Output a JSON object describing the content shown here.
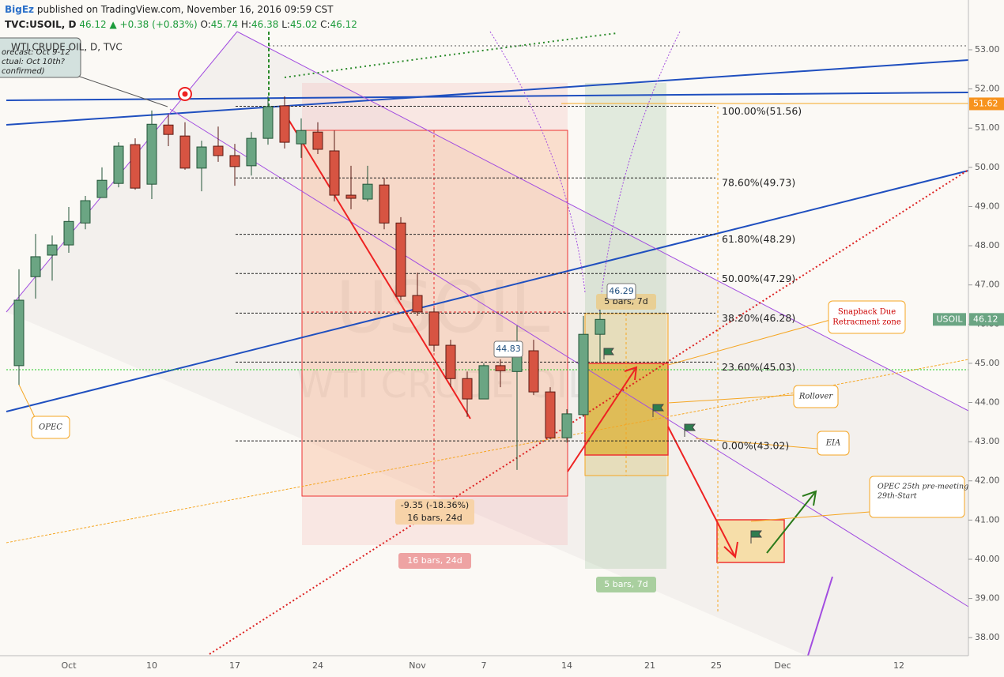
{
  "header": {
    "author": "BigEz",
    "published": "published on TradingView.com, November 16, 2016 09:59 CST",
    "symbol": "TVC:USOIL, D",
    "last": "46.12",
    "change": "▲ +0.38 (+0.83%)",
    "ohlc": [
      {
        "key": "O:",
        "value": "45.74"
      },
      {
        "key": "H:",
        "value": "46.38"
      },
      {
        "key": "L:",
        "value": "45.02"
      },
      {
        "key": "C:",
        "value": "46.12"
      }
    ]
  },
  "chart_data": {
    "type": "candlestick",
    "title": "WTI CRUDE OIL, D, TVC",
    "watermark": [
      "USOIL",
      "WTI CRUDE OIL"
    ],
    "categories": [
      null,
      null,
      null,
      "Oct",
      null,
      null,
      null,
      null,
      "10",
      null,
      null,
      null,
      null,
      "17",
      null,
      null,
      null,
      null,
      "24",
      null,
      null,
      null,
      null,
      null,
      "Nov",
      null,
      null,
      null,
      "7",
      null,
      null,
      null,
      null,
      "14",
      null,
      null,
      null,
      null,
      "21",
      null,
      null,
      null,
      "25",
      null,
      null,
      null,
      "Dec",
      null,
      null,
      null,
      null,
      null,
      null,
      "12",
      null,
      null,
      null,
      null
    ],
    "open": [
      44.94,
      47.21,
      47.76,
      48.02,
      48.58,
      49.23,
      49.59,
      50.58,
      49.57,
      51.08,
      50.8,
      49.98,
      50.54,
      50.3,
      50.04,
      50.74,
      51.57,
      50.6,
      50.9,
      50.42,
      49.29,
      49.19,
      49.55,
      48.58,
      46.73,
      46.31,
      45.46,
      44.61,
      44.09,
      44.94,
      44.79,
      45.32,
      44.27,
      43.1,
      43.69,
      45.74,
      null,
      null,
      null,
      null,
      null,
      null,
      null,
      null,
      null,
      null,
      null,
      null,
      null,
      null,
      null,
      null,
      null,
      null,
      null,
      null,
      null,
      null
    ],
    "high": [
      47.4,
      48.3,
      48.26,
      48.99,
      49.27,
      50.0,
      50.64,
      50.74,
      51.45,
      51.35,
      51.15,
      50.68,
      51.04,
      50.6,
      50.9,
      51.81,
      51.81,
      51.25,
      51.15,
      50.94,
      50.04,
      50.04,
      49.73,
      48.73,
      47.31,
      46.41,
      45.6,
      44.79,
      45.0,
      45.1,
      45.96,
      45.6,
      44.39,
      43.83,
      46.21,
      46.38,
      null,
      null,
      null,
      null,
      null,
      null,
      null,
      null,
      null,
      null,
      null,
      null,
      null,
      null,
      null,
      null,
      null,
      null,
      null,
      null,
      null,
      null
    ],
    "low": [
      44.45,
      46.65,
      47.11,
      47.82,
      48.42,
      49.23,
      49.49,
      49.43,
      49.19,
      50.54,
      49.94,
      49.39,
      50.14,
      49.53,
      49.79,
      50.58,
      50.48,
      50.24,
      50.34,
      49.13,
      48.93,
      49.13,
      48.42,
      46.61,
      46.21,
      45.3,
      44.39,
      43.63,
      44.09,
      44.39,
      42.28,
      44.19,
      43.06,
      42.98,
      43.63,
      45.02,
      null,
      null,
      null,
      null,
      null,
      null,
      null,
      null,
      null,
      null,
      null,
      null,
      null,
      null,
      null,
      null,
      null,
      null,
      null,
      null,
      null,
      null
    ],
    "close": [
      46.61,
      47.72,
      48.02,
      48.62,
      49.15,
      49.67,
      50.54,
      49.47,
      51.1,
      50.84,
      49.98,
      50.52,
      50.3,
      50.02,
      50.74,
      51.55,
      50.64,
      50.94,
      50.46,
      49.29,
      49.21,
      49.57,
      48.58,
      46.71,
      46.31,
      45.46,
      44.61,
      44.09,
      44.94,
      44.81,
      45.22,
      44.27,
      43.1,
      43.71,
      45.74,
      46.12,
      null,
      null,
      null,
      null,
      null,
      null,
      null,
      null,
      null,
      null,
      null,
      null,
      null,
      null,
      null,
      null,
      null,
      null,
      null,
      null,
      null,
      null
    ],
    "up_color": "#6ba583",
    "down_color": "#d75442",
    "ylim": [
      37.54,
      54.27
    ],
    "yticks": [
      {
        "value": 38,
        "label": "38.00"
      },
      {
        "value": 39,
        "label": "39.00"
      },
      {
        "value": 40,
        "label": "40.00"
      },
      {
        "value": 41,
        "label": "41.00"
      },
      {
        "value": 42,
        "label": "42.00"
      },
      {
        "value": 43,
        "label": "43.00"
      },
      {
        "value": 44,
        "label": "44.00"
      },
      {
        "value": 45,
        "label": "45.00"
      },
      {
        "value": 46,
        "label": "46.00"
      },
      {
        "value": 47,
        "label": "47.00"
      },
      {
        "value": 48,
        "label": "48.00"
      },
      {
        "value": 49,
        "label": "49.00"
      },
      {
        "value": 50,
        "label": "50.00"
      },
      {
        "value": 51,
        "label": "51.00"
      },
      {
        "value": 52,
        "label": "52.00"
      },
      {
        "value": 53,
        "label": "53.00"
      }
    ],
    "fib_levels": [
      {
        "label": "100.00%(51.56)",
        "price": 51.56
      },
      {
        "label": "78.60%(49.73)",
        "price": 49.73
      },
      {
        "label": "61.80%(48.29)",
        "price": 48.29
      },
      {
        "label": "50.00%(47.29)",
        "price": 47.29
      },
      {
        "label": "38.20%(46.28)",
        "price": 46.28
      },
      {
        "label": "23.60%(45.03)",
        "price": 45.03
      },
      {
        "label": "0.00%(43.02)",
        "price": 43.02
      }
    ],
    "price_tags": [
      {
        "value": 51.62,
        "color": "#f7931e"
      },
      {
        "name": "USOIL",
        "value": 46.12,
        "color": "#6ba583"
      }
    ],
    "notes": [
      {
        "lines": [
          "OPEC"
        ]
      },
      {
        "lines": [
          "Snapback Due",
          "Retracment zone"
        ]
      },
      {
        "lines": [
          "Rollover"
        ]
      },
      {
        "lines": [
          "EIA"
        ]
      },
      {
        "lines": [
          "OPEC 25th pre-meeting",
          "29th-Start"
        ]
      }
    ],
    "forecast_note": [
      "orecast: Oct 9-12",
      "ctual: Oct 10th?",
      "confirmed)"
    ],
    "measure_labels": [
      "-9.35 (-18.36%)",
      "16 bars, 24d",
      "16 bars, 24d",
      "5 bars, 7d",
      "5 bars, 7d",
      "46.29",
      "44.83"
    ]
  }
}
